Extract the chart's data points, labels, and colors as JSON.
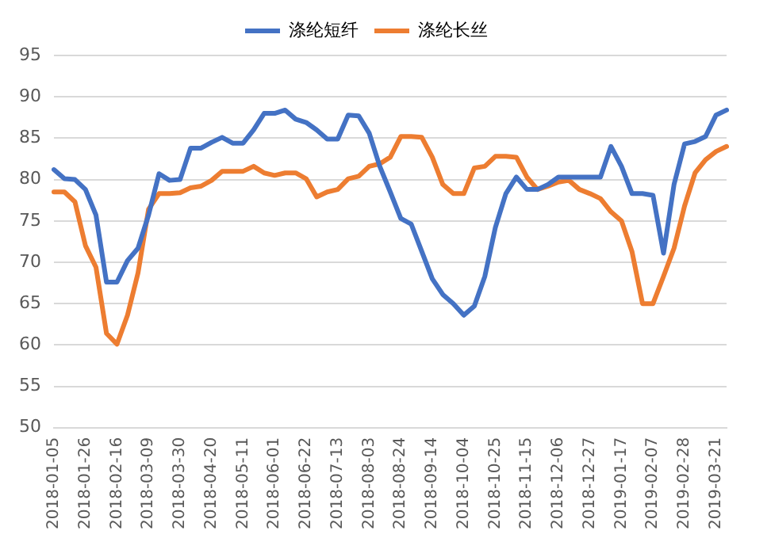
{
  "chart_data": {
    "type": "line",
    "categories": [
      "2018-01-05",
      null,
      null,
      "2018-01-26",
      null,
      null,
      "2018-02-16",
      null,
      null,
      "2018-03-09",
      null,
      null,
      "2018-03-30",
      null,
      null,
      "2018-04-20",
      null,
      null,
      "2018-05-11",
      null,
      null,
      "2018-06-01",
      null,
      null,
      "2018-06-22",
      null,
      null,
      "2018-07-13",
      null,
      null,
      "2018-08-03",
      null,
      null,
      "2018-08-24",
      null,
      null,
      "2018-09-14",
      null,
      null,
      "2018-10-04",
      null,
      null,
      "2018-10-25",
      null,
      null,
      "2018-11-15",
      null,
      null,
      "2018-12-06",
      null,
      null,
      "2018-12-27",
      null,
      null,
      "2019-01-17",
      null,
      null,
      "2019-02-07",
      null,
      null,
      "2019-02-28",
      null,
      null,
      "2019-03-21",
      null
    ],
    "series": [
      {
        "name": "涤纶短纤",
        "color": "#4472c4",
        "values": [
          81.2,
          80.1,
          80,
          78.8,
          75.7,
          67.6,
          67.6,
          70.2,
          71.7,
          75.7,
          80.7,
          79.9,
          80,
          83.8,
          83.8,
          84.5,
          85.1,
          84.4,
          84.4,
          86,
          88,
          88,
          88.4,
          87.3,
          86.9,
          86,
          84.9,
          84.9,
          87.8,
          87.7,
          85.6,
          81.6,
          78.5,
          75.3,
          74.6,
          71.3,
          68,
          66.1,
          65,
          63.6,
          64.7,
          68.3,
          74.2,
          78.3,
          80.3,
          78.8,
          78.8,
          79.4,
          80.3,
          80.3,
          80.3,
          80.3,
          80.3,
          84,
          81.6,
          78.3,
          78.3,
          78.1,
          71.1,
          79.4,
          84.3,
          84.6,
          85.2,
          87.8,
          88.4
        ]
      },
      {
        "name": "涤纶长丝",
        "color": "#ed7d31",
        "values": [
          78.5,
          78.5,
          77.3,
          72,
          69.4,
          61.4,
          60.1,
          63.6,
          68.7,
          76.4,
          78.3,
          78.3,
          78.4,
          79,
          79.2,
          79.9,
          81,
          81,
          81,
          81.6,
          80.8,
          80.5,
          80.8,
          80.8,
          80.1,
          77.9,
          78.5,
          78.8,
          80.1,
          80.4,
          81.6,
          81.9,
          82.7,
          85.2,
          85.2,
          85.1,
          82.7,
          79.4,
          78.3,
          78.3,
          81.4,
          81.6,
          82.8,
          82.8,
          82.7,
          80.3,
          78.8,
          79.2,
          79.7,
          79.9,
          78.8,
          78.3,
          77.7,
          76.1,
          75,
          71.3,
          65,
          65,
          68.3,
          71.7,
          76.8,
          80.8,
          82.4,
          83.4,
          84
        ]
      }
    ],
    "ylim": [
      50,
      95
    ],
    "yticks": [
      50,
      55,
      60,
      65,
      70,
      75,
      80,
      85,
      90,
      95
    ],
    "grid": "y",
    "legend": "top",
    "marker": "none",
    "line_style": "solid"
  }
}
